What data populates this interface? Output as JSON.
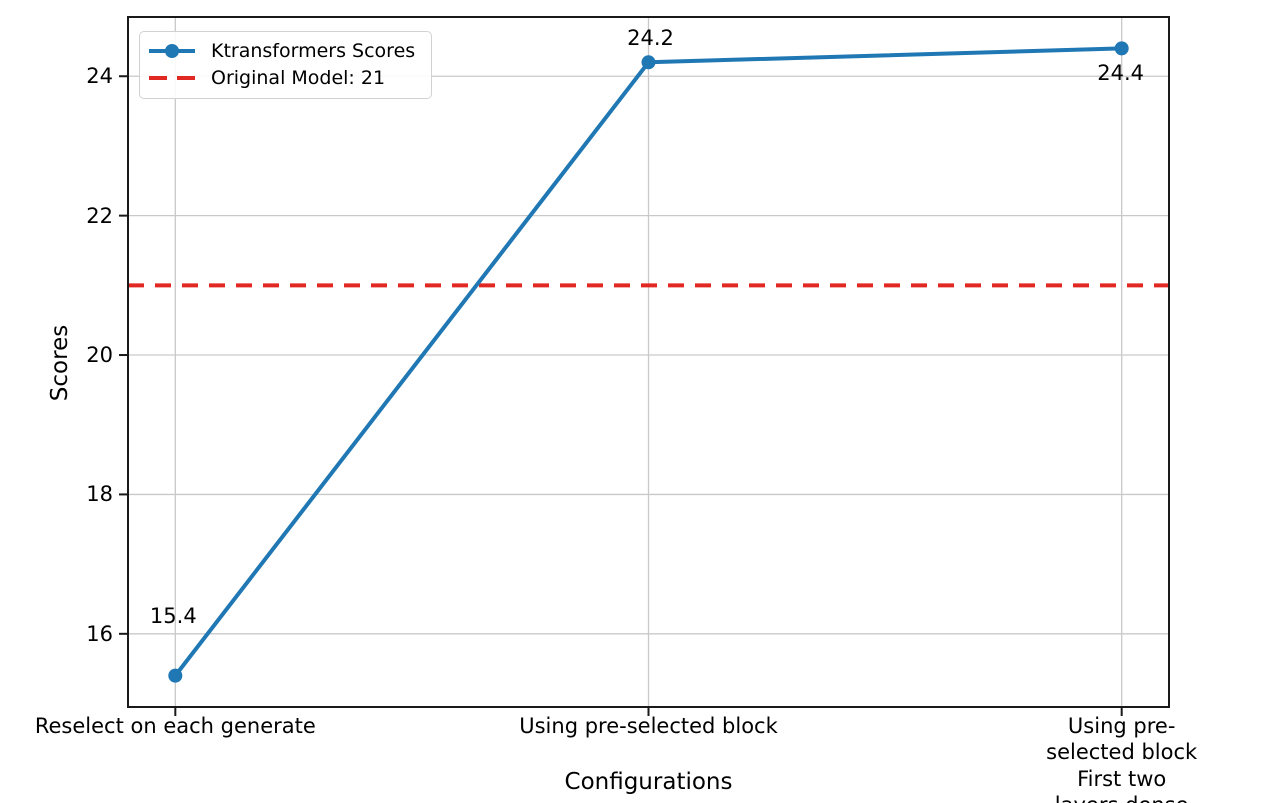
{
  "chart_data": {
    "type": "line",
    "title": "",
    "xlabel": "Configurations",
    "ylabel": "Scores",
    "categories": [
      "Reselect on each generate",
      "Using pre-selected block",
      "Using pre-selected block\nFirst two layers dense"
    ],
    "series": [
      {
        "name": "Ktransformers Scores",
        "values": [
          15.4,
          24.2,
          24.4
        ],
        "color": "#1f77b4",
        "marker": "circle"
      }
    ],
    "reference_line": {
      "label": "Original Model: 21",
      "value": 21,
      "color": "#e22822",
      "style": "dashed"
    },
    "point_labels": [
      "15.4",
      "24.2",
      "24.4"
    ],
    "yticks": [
      16,
      18,
      20,
      22,
      24
    ],
    "ylim": [
      14.95,
      24.85
    ],
    "xlim": [
      -0.1,
      2.1
    ],
    "grid": true,
    "grid_color": "#c9c9c9",
    "legend_position": "upper-left"
  }
}
